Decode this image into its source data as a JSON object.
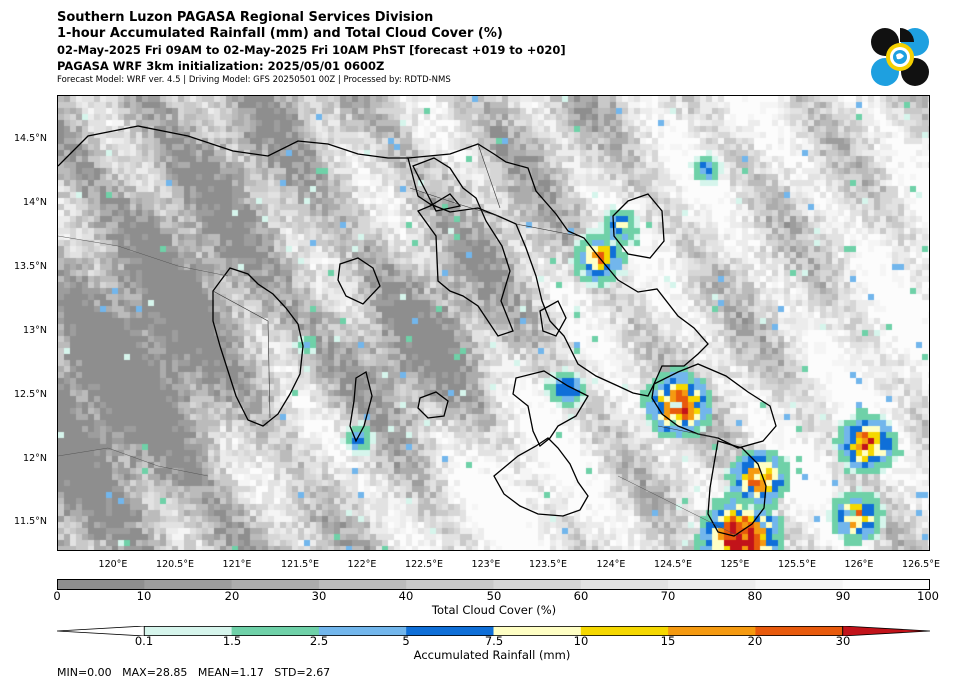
{
  "header": {
    "line1": "Southern Luzon PAGASA Regional Services Division",
    "line2": "1-hour Accumulated Rainfall (mm) and Total Cloud Cover (%)",
    "line3": "02-May-2025 Fri 09AM to 02-May-2025 Fri 10AM PhST [forecast +019 to +020]",
    "line4": "PAGASA WRF 3km initialization: 2025/05/01 0600Z",
    "line5": "Forecast Model: WRF ver. 4.5 | Driving Model: GFS 20250501 00Z | Processed by: RDTD-NMS"
  },
  "logo": {
    "icon": "pagasa-logo",
    "colors": [
      "#111111",
      "#1ea0e0",
      "#f5d000"
    ]
  },
  "map": {
    "latitude_labels": [
      "14.5°N",
      "14°N",
      "13.5°N",
      "13°N",
      "12.5°N",
      "12°N",
      "11.5°N"
    ],
    "longitude_labels": [
      "120°E",
      "120.5°E",
      "121°E",
      "121.5°E",
      "122°E",
      "122.5°E",
      "123°E",
      "123.5°E",
      "124°E",
      "124.5°E",
      "125°E",
      "125.5°E",
      "126°E",
      "126.5°E"
    ]
  },
  "cloud_colorbar": {
    "title": "Total Cloud Cover (%)",
    "ticks": [
      "0",
      "10",
      "20",
      "30",
      "40",
      "50",
      "60",
      "70",
      "80",
      "90",
      "100"
    ],
    "colors": [
      "#8e8e8e",
      "#9d9d9d",
      "#acacac",
      "#bbbbbb",
      "#c9c9c9",
      "#d6d6d6",
      "#e2e2e2",
      "#ececec",
      "#f5f5f5",
      "#fcfcfc"
    ]
  },
  "rain_colorbar": {
    "title": "Accumulated Rainfall (mm)",
    "ticks": [
      "0.1",
      "1.5",
      "2.5",
      "5",
      "7.5",
      "10",
      "15",
      "20",
      "30"
    ],
    "colors": [
      "#ffffff",
      "#d6f5ec",
      "#6fd1a8",
      "#72b6ec",
      "#0f6fd8",
      "#ffffc4",
      "#f5d800",
      "#f59a10",
      "#e85a0c",
      "#c2131a"
    ]
  },
  "stats": {
    "text": "MIN=0.00   MAX=28.85   MEAN=1.17   STD=2.67"
  }
}
